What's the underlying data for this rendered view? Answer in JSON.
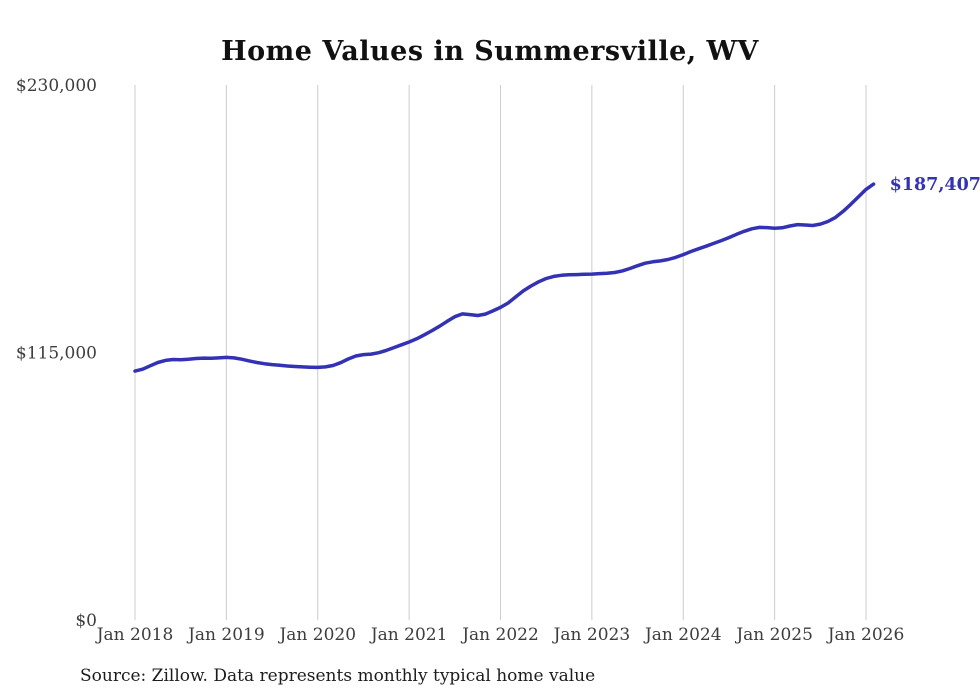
{
  "title": "Home Values in Summersville, WV",
  "source": "Source: Zillow. Data represents monthly typical home value",
  "end_label": "$187,407",
  "colors": {
    "line": "#3432b4",
    "grid": "#cccccc",
    "axis_text": "#3d3d3d",
    "title_text": "#111111"
  },
  "chart_data": {
    "type": "line",
    "title": "Home Values in Summersville, WV",
    "xlabel": "",
    "ylabel": "",
    "ylim": [
      0,
      230000
    ],
    "grid": "vertical",
    "legend_position": "none",
    "x_tick_labels": [
      "Jan 2018",
      "Jan 2019",
      "Jan 2020",
      "Jan 2021",
      "Jan 2022",
      "Jan 2023",
      "Jan 2024",
      "Jan 2025",
      "Jan 2026"
    ],
    "x_tick_month_indices": [
      0,
      12,
      24,
      36,
      48,
      60,
      72,
      84,
      96
    ],
    "y_ticks": [
      {
        "label": "$230,000",
        "value": 230000
      },
      {
        "label": "$115,000",
        "value": 115000
      },
      {
        "label": "$0",
        "value": 0
      }
    ],
    "series": [
      {
        "name": "Monthly typical home value",
        "start_month": "Jan 2018",
        "values": [
          107000,
          107800,
          109300,
          110700,
          111600,
          112000,
          111900,
          112100,
          112400,
          112600,
          112500,
          112700,
          112900,
          112700,
          112100,
          111400,
          110700,
          110200,
          109800,
          109500,
          109200,
          109000,
          108800,
          108700,
          108600,
          108800,
          109400,
          110600,
          112200,
          113500,
          114100,
          114300,
          114900,
          115900,
          117100,
          118300,
          119500,
          120900,
          122600,
          124400,
          126300,
          128400,
          130400,
          131600,
          131300,
          130900,
          131500,
          132900,
          134400,
          136300,
          138900,
          141500,
          143600,
          145400,
          146800,
          147700,
          148200,
          148400,
          148500,
          148600,
          148700,
          148900,
          149100,
          149400,
          150100,
          151100,
          152300,
          153400,
          154000,
          154400,
          155000,
          155900,
          157100,
          158400,
          159600,
          160700,
          161900,
          163100,
          164400,
          165800,
          167100,
          168200,
          168800,
          168700,
          168400,
          168600,
          169400,
          170000,
          169800,
          169600,
          170200,
          171300,
          173100,
          175700,
          178700,
          181900,
          185100,
          187407
        ]
      }
    ],
    "final_value": 187407,
    "final_value_label": "$187,407"
  }
}
